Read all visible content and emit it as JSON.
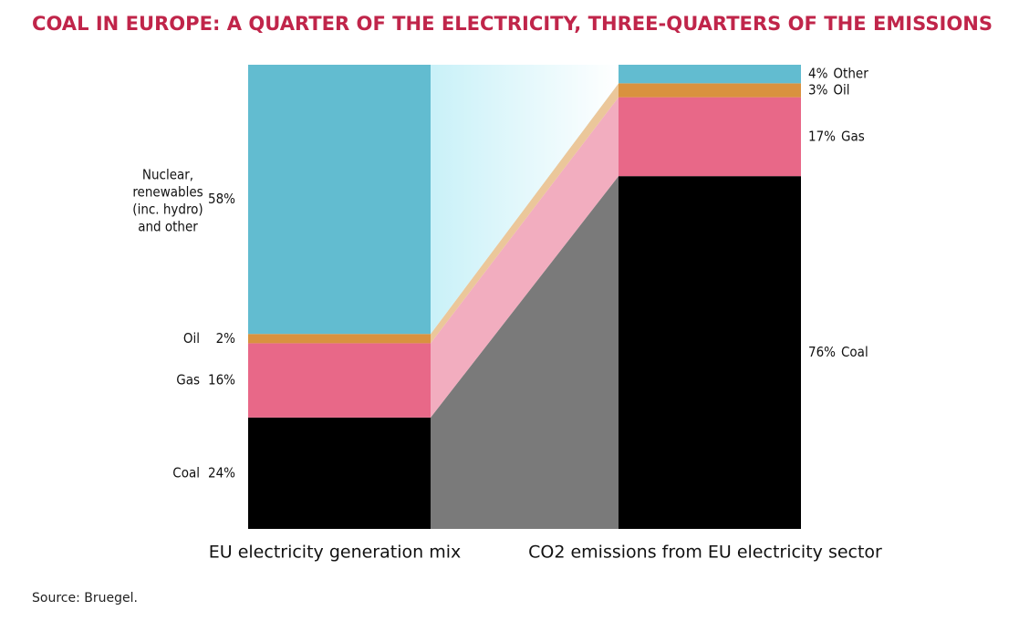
{
  "chart_data": {
    "type": "stacked-bar-flow",
    "title": "COAL IN EUROPE: A QUARTER OF THE ELECTRICITY, THREE-QUARTERS OF THE EMISSIONS",
    "source": "Source: Bruegel.",
    "categories": [
      "EU electricity generation mix",
      "CO2 emissions from EU electricity sector"
    ],
    "ylim": [
      0,
      100
    ],
    "series": [
      {
        "labels": [
          "Coal",
          "Coal"
        ],
        "values": [
          24,
          76
        ],
        "value_labels": [
          "24%",
          "76%"
        ],
        "color": "#000000",
        "band_color": "#7a7a7a"
      },
      {
        "labels": [
          "Gas",
          "Gas"
        ],
        "values": [
          16,
          17
        ],
        "value_labels": [
          "16%",
          "17%"
        ],
        "color": "#e86888",
        "band_color": "#f2adbf"
      },
      {
        "labels": [
          "Oil",
          "Oil"
        ],
        "values": [
          2,
          3
        ],
        "value_labels": [
          "2%",
          "3%"
        ],
        "color": "#d9923f",
        "band_color": "#ebc79a"
      },
      {
        "labels": [
          [
            "Nuclear,",
            "renewables",
            "(inc. hydro)",
            "and other"
          ],
          "Other"
        ],
        "values": [
          58,
          4
        ],
        "value_labels": [
          "58%",
          "4%"
        ],
        "color": "#62bcd0",
        "band_color": "#c9f1f8"
      }
    ]
  }
}
